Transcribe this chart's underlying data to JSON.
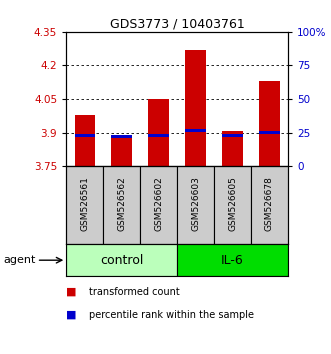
{
  "title": "GDS3773 / 10403761",
  "samples": [
    "GSM526561",
    "GSM526562",
    "GSM526602",
    "GSM526603",
    "GSM526605",
    "GSM526678"
  ],
  "groups": [
    "control",
    "control",
    "control",
    "IL-6",
    "IL-6",
    "IL-6"
  ],
  "transformed_counts": [
    3.98,
    3.89,
    4.05,
    4.27,
    3.91,
    4.13
  ],
  "percentile_ranks": [
    23,
    22,
    23,
    27,
    23,
    25
  ],
  "y_min": 3.75,
  "y_max": 4.35,
  "y_ticks_left": [
    3.75,
    3.9,
    4.05,
    4.2,
    4.35
  ],
  "y_ticks_right_vals": [
    0,
    25,
    50,
    75,
    100
  ],
  "y_ticks_right_labels": [
    "0",
    "25",
    "50",
    "75",
    "100%"
  ],
  "dotted_lines": [
    3.9,
    4.05,
    4.2
  ],
  "bar_color": "#cc0000",
  "percentile_color": "#0000cc",
  "bar_width": 0.55,
  "group_colors_control": "#bbffbb",
  "group_colors_il6": "#00dd00",
  "control_label": "control",
  "il6_label": "IL-6",
  "agent_label": "agent",
  "legend_item1": "transformed count",
  "legend_item2": "percentile rank within the sample",
  "plot_bg_color": "#ffffff",
  "xlabel_area_color": "#cccccc",
  "left_axis_color": "#cc0000",
  "right_axis_color": "#0000cc",
  "title_fontsize": 9,
  "tick_fontsize": 7.5,
  "sample_fontsize": 6.5,
  "group_fontsize": 9,
  "legend_fontsize": 7,
  "agent_fontsize": 8
}
